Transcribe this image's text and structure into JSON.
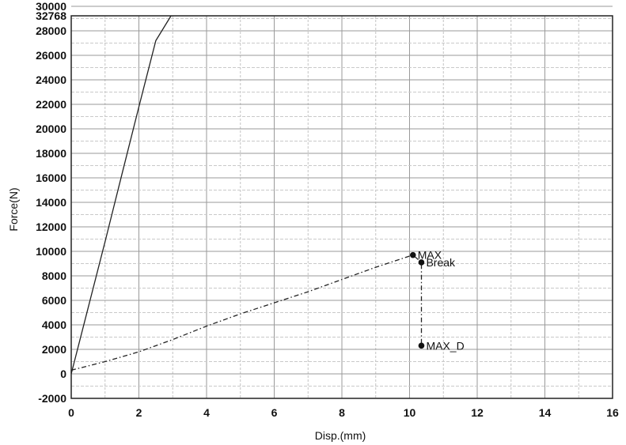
{
  "chart_data": {
    "type": "line",
    "title": "",
    "xlabel": "Disp.(mm)",
    "ylabel": "Force(N)",
    "xlim": [
      0,
      16
    ],
    "ylim": [
      -2000,
      32768
    ],
    "x_ticks": [
      "0",
      "2",
      "4",
      "6",
      "8",
      "10",
      "12",
      "14",
      "16"
    ],
    "y_ticks": [
      "-2000",
      "0",
      "2000",
      "4000",
      "6000",
      "8000",
      "10000",
      "12000",
      "14000",
      "16000",
      "18000",
      "20000",
      "22000",
      "24000",
      "26000",
      "28000",
      "30000",
      "32768"
    ],
    "grid": true,
    "series": [
      {
        "name": "",
        "style": "solid",
        "color": "#222222",
        "points": [
          [
            0,
            0
          ],
          [
            0.5,
            5400
          ],
          [
            1.0,
            10800
          ],
          [
            1.5,
            16300
          ],
          [
            2.0,
            21800
          ],
          [
            2.5,
            27200
          ],
          [
            2.95,
            32768
          ]
        ]
      },
      {
        "name": "",
        "style": "dash-dot",
        "color": "#222222",
        "points": [
          [
            0,
            300
          ],
          [
            1,
            1000
          ],
          [
            2,
            1800
          ],
          [
            3,
            2800
          ],
          [
            4,
            3900
          ],
          [
            5,
            4900
          ],
          [
            6,
            5800
          ],
          [
            7,
            6700
          ],
          [
            8,
            7700
          ],
          [
            9,
            8700
          ],
          [
            10.1,
            9700
          ],
          [
            10.35,
            9100
          ],
          [
            10.35,
            2300
          ]
        ]
      }
    ],
    "annotations": [
      {
        "label": "MAX",
        "x": 10.1,
        "y": 9700
      },
      {
        "label": "Break",
        "x": 10.35,
        "y": 9100
      },
      {
        "label": "MAX_D",
        "x": 10.35,
        "y": 2300
      }
    ]
  }
}
